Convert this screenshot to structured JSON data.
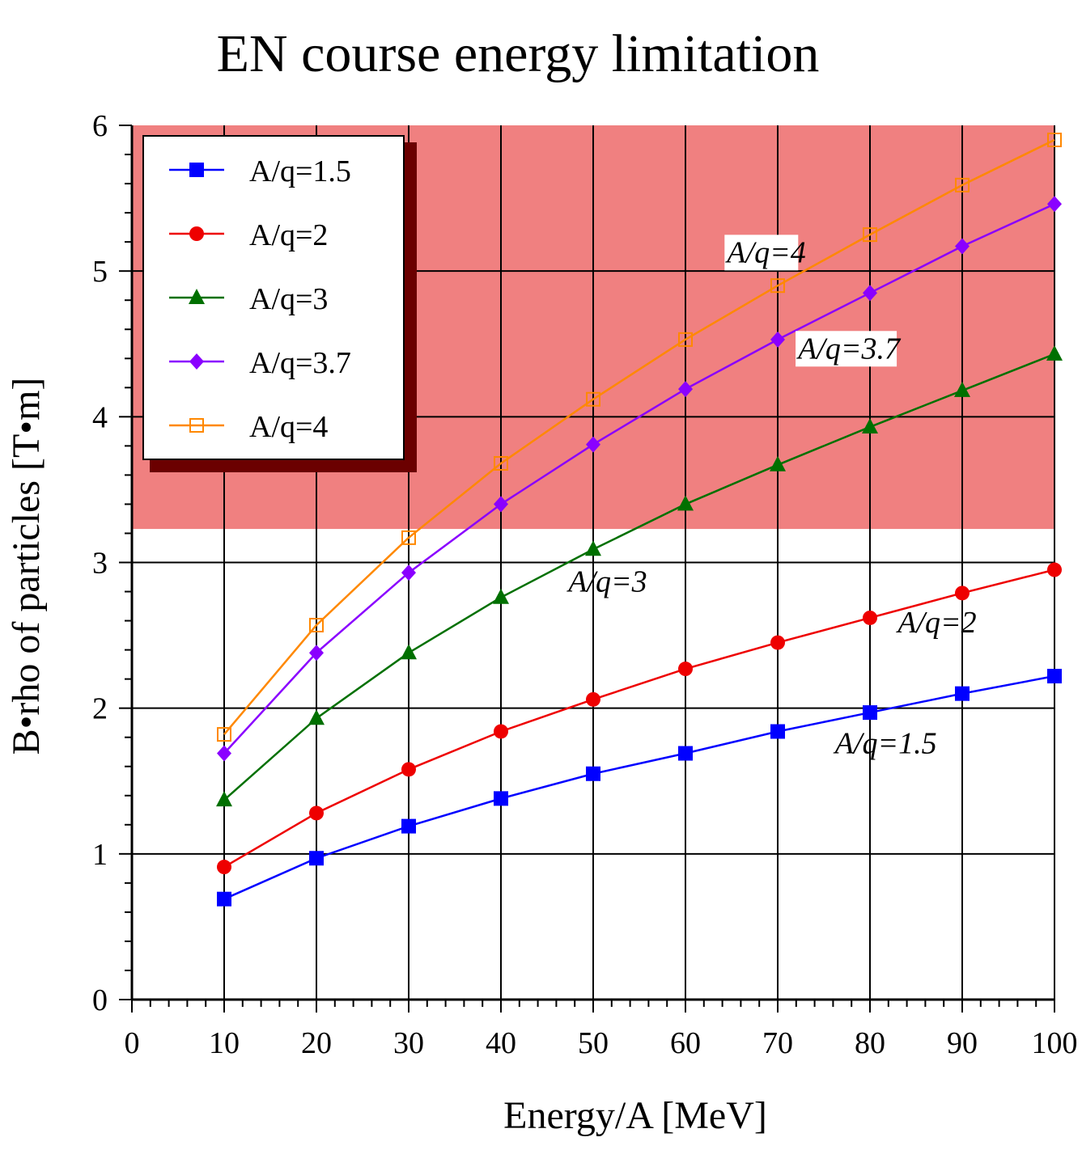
{
  "colors": {
    "limit_region": "#f08080",
    "legend_shadow": "#6b0000",
    "grid": "#000000"
  },
  "chart_data": {
    "type": "line",
    "title": "EN course energy limitation",
    "xlabel": "Energy/A  [MeV]",
    "ylabel": "B•rho of particles [T•m]",
    "xlim": [
      0,
      100
    ],
    "ylim": [
      0,
      6
    ],
    "x_ticks": [
      "0",
      "10",
      "20",
      "30",
      "40",
      "50",
      "60",
      "70",
      "80",
      "90",
      "100"
    ],
    "y_ticks": [
      "0",
      "1",
      "2",
      "3",
      "4",
      "5",
      "6"
    ],
    "grid": true,
    "legend_position": "top-left",
    "limit_region": {
      "y_from": 3.23,
      "y_to": 6
    },
    "x": [
      10,
      20,
      30,
      40,
      50,
      60,
      70,
      80,
      90,
      100
    ],
    "series": [
      {
        "name": "A/q=1.5",
        "color": "#0000ff",
        "marker": "square-filled",
        "values": [
          0.69,
          0.97,
          1.19,
          1.38,
          1.55,
          1.69,
          1.84,
          1.97,
          2.1,
          2.22
        ]
      },
      {
        "name": "A/q=2",
        "color": "#ee0000",
        "marker": "circle-filled",
        "values": [
          0.91,
          1.28,
          1.58,
          1.84,
          2.06,
          2.27,
          2.45,
          2.62,
          2.79,
          2.95
        ]
      },
      {
        "name": "A/q=3",
        "color": "#007000",
        "marker": "triangle-filled",
        "values": [
          1.37,
          1.93,
          2.38,
          2.76,
          3.09,
          3.4,
          3.67,
          3.93,
          4.18,
          4.43
        ]
      },
      {
        "name": "A/q=3.7",
        "color": "#8a00ff",
        "marker": "diamond-filled",
        "values": [
          1.69,
          2.38,
          2.93,
          3.4,
          3.81,
          4.19,
          4.53,
          4.85,
          5.17,
          5.46
        ]
      },
      {
        "name": "A/q=4",
        "color": "#ff8800",
        "marker": "square-open",
        "values": [
          1.82,
          2.57,
          3.17,
          3.68,
          4.12,
          4.53,
          4.9,
          5.25,
          5.59,
          5.9
        ]
      }
    ],
    "annotations": [
      {
        "text": "A/q=4",
        "x": 64.5,
        "y": 5.06,
        "boxed": true
      },
      {
        "text": "A/q=3.7",
        "x": 72.2,
        "y": 4.4,
        "boxed": true
      },
      {
        "text": "A/q=3",
        "x": 47.3,
        "y": 2.8,
        "boxed": false
      },
      {
        "text": "A/q=2",
        "x": 83.0,
        "y": 2.52,
        "boxed": false
      },
      {
        "text": "A/q=1.5",
        "x": 76.2,
        "y": 1.69,
        "boxed": false
      }
    ]
  }
}
